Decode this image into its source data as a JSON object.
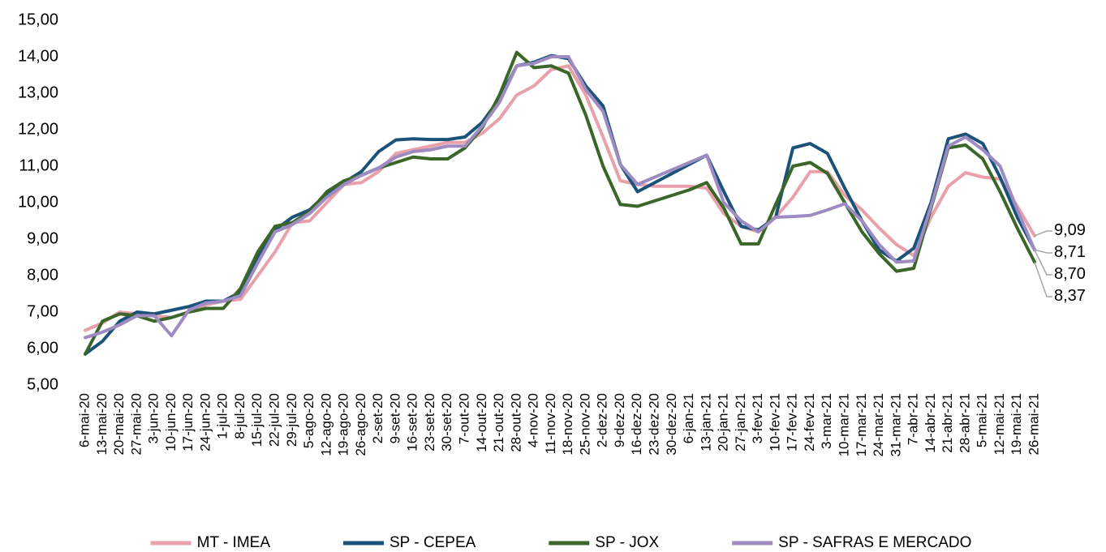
{
  "chart_data": {
    "type": "line",
    "categories": [
      "6-mai-20",
      "13-mai-20",
      "20-mai-20",
      "27-mai-20",
      "3-jun-20",
      "10-jun-20",
      "17-jun-20",
      "24-jun-20",
      "1-jul-20",
      "8-jul-20",
      "15-jul-20",
      "22-jul-20",
      "29-jul-20",
      "5-ago-20",
      "12-ago-20",
      "19-ago-20",
      "26-ago-20",
      "2-set-20",
      "9-set-20",
      "16-set-20",
      "23-set-20",
      "30-set-20",
      "7-out-20",
      "14-out-20",
      "21-out-20",
      "28-out-20",
      "4-nov-20",
      "11-nov-20",
      "18-nov-20",
      "25-nov-20",
      "2-dez-20",
      "9-dez-20",
      "16-dez-20",
      "23-dez-20",
      "30-dez-20",
      "6-jan-21",
      "13-jan-21",
      "20-jan-21",
      "27-jan-21",
      "3-fev-21",
      "10-fev-21",
      "17-fev-21",
      "24-fev-21",
      "3-mar-21",
      "10-mar-21",
      "17-mar-21",
      "24-mar-21",
      "31-mar-21",
      "7-abr-21",
      "14-abr-21",
      "21-abr-21",
      "28-abr-21",
      "5-mai-21",
      "12-mai-21",
      "19-mai-21",
      "26-mai-21"
    ],
    "series": [
      {
        "name": "MT - IMEA",
        "color": "#e8a1aa",
        "values": [
          6.5,
          6.7,
          7.0,
          6.95,
          6.9,
          6.85,
          7.0,
          7.2,
          7.3,
          7.35,
          8.0,
          8.65,
          9.45,
          9.5,
          10.0,
          10.5,
          10.55,
          10.85,
          11.35,
          11.45,
          11.55,
          11.65,
          11.65,
          11.9,
          12.3,
          12.95,
          13.2,
          13.65,
          13.75,
          12.95,
          11.8,
          10.6,
          10.5,
          10.45,
          10.45,
          10.45,
          10.4,
          9.7,
          9.35,
          9.2,
          9.6,
          10.15,
          10.85,
          10.85,
          10.2,
          9.8,
          9.3,
          8.85,
          8.55,
          9.6,
          10.45,
          10.82,
          10.7,
          10.65,
          9.9,
          9.09
        ],
        "value_labels": [
          null,
          null,
          null,
          null,
          null,
          null,
          null,
          null,
          null,
          null,
          null,
          null,
          null,
          null,
          null,
          null,
          null,
          null,
          null,
          null,
          null,
          null,
          null,
          null,
          null,
          null,
          null,
          null,
          null,
          null,
          null,
          null,
          null,
          null,
          null,
          null,
          null,
          null,
          null,
          null,
          null,
          null,
          null,
          null,
          null,
          null,
          null,
          null,
          null,
          null,
          null,
          null,
          null,
          null,
          null,
          "9,09"
        ]
      },
      {
        "name": "SP - CEPEA",
        "color": "#1b527a",
        "values": [
          5.85,
          6.2,
          6.75,
          7.0,
          6.95,
          7.05,
          7.15,
          7.3,
          7.3,
          7.55,
          8.5,
          9.25,
          9.6,
          9.8,
          10.25,
          10.55,
          10.85,
          11.4,
          11.72,
          11.75,
          11.73,
          11.73,
          11.8,
          12.2,
          12.85,
          13.75,
          13.85,
          14.03,
          13.95,
          13.2,
          12.65,
          11.05,
          10.3,
          10.55,
          10.8,
          11.05,
          11.3,
          10.3,
          9.35,
          9.25,
          9.6,
          11.5,
          11.62,
          11.35,
          10.4,
          9.5,
          8.7,
          8.4,
          8.75,
          10.0,
          11.75,
          11.88,
          11.62,
          10.7,
          9.6,
          8.71
        ],
        "value_labels": [
          null,
          null,
          null,
          null,
          null,
          null,
          null,
          null,
          null,
          null,
          null,
          null,
          null,
          null,
          null,
          null,
          null,
          null,
          null,
          null,
          null,
          null,
          null,
          null,
          null,
          null,
          null,
          null,
          null,
          null,
          null,
          null,
          null,
          null,
          null,
          null,
          null,
          null,
          null,
          null,
          null,
          null,
          null,
          null,
          null,
          null,
          null,
          null,
          null,
          null,
          null,
          null,
          null,
          null,
          null,
          "8,71"
        ]
      },
      {
        "name": "SP - JOX",
        "color": "#3b6629",
        "values": [
          5.85,
          6.75,
          6.95,
          6.9,
          6.75,
          6.85,
          7.0,
          7.1,
          7.1,
          7.65,
          8.65,
          9.35,
          9.45,
          9.75,
          10.3,
          10.6,
          10.75,
          10.95,
          11.1,
          11.25,
          11.2,
          11.2,
          11.5,
          12.05,
          12.95,
          14.12,
          13.7,
          13.75,
          13.55,
          12.4,
          11.0,
          9.95,
          9.9,
          10.05,
          10.2,
          10.35,
          10.55,
          9.85,
          8.87,
          8.87,
          9.95,
          11.0,
          11.1,
          10.8,
          10.0,
          9.2,
          8.6,
          8.12,
          8.2,
          9.85,
          11.5,
          11.58,
          11.2,
          10.3,
          9.3,
          8.37
        ],
        "value_labels": [
          null,
          null,
          null,
          null,
          null,
          null,
          null,
          null,
          null,
          null,
          null,
          null,
          null,
          null,
          null,
          null,
          null,
          null,
          null,
          null,
          null,
          null,
          null,
          null,
          null,
          null,
          null,
          null,
          null,
          null,
          null,
          null,
          null,
          null,
          null,
          null,
          null,
          null,
          null,
          null,
          null,
          null,
          null,
          null,
          null,
          null,
          null,
          null,
          null,
          null,
          null,
          null,
          null,
          null,
          null,
          "8,37"
        ]
      },
      {
        "name": "SP - SAFRAS E MERCADO",
        "color": "#9d8bc2",
        "values": [
          6.3,
          6.45,
          6.65,
          6.9,
          6.9,
          6.35,
          7.05,
          7.25,
          7.3,
          7.45,
          8.35,
          9.2,
          9.4,
          9.7,
          10.15,
          10.5,
          10.75,
          10.95,
          11.25,
          11.4,
          11.45,
          11.55,
          11.55,
          12.1,
          12.75,
          13.75,
          13.82,
          14.0,
          14.0,
          13.1,
          12.5,
          11.05,
          10.5,
          10.7,
          10.9,
          11.1,
          11.3,
          10.0,
          9.5,
          9.2,
          9.6,
          9.62,
          9.65,
          9.8,
          9.97,
          9.5,
          8.85,
          8.37,
          8.4,
          9.9,
          11.55,
          11.8,
          11.45,
          11.0,
          9.8,
          8.7
        ],
        "value_labels": [
          null,
          null,
          null,
          null,
          null,
          null,
          null,
          null,
          null,
          null,
          null,
          null,
          null,
          null,
          null,
          null,
          null,
          null,
          null,
          null,
          null,
          null,
          null,
          null,
          null,
          null,
          null,
          null,
          null,
          null,
          null,
          null,
          null,
          null,
          null,
          null,
          null,
          null,
          null,
          null,
          null,
          null,
          null,
          null,
          null,
          null,
          null,
          null,
          null,
          null,
          null,
          null,
          null,
          null,
          null,
          "8,70"
        ]
      }
    ],
    "ylim": [
      5,
      15
    ],
    "yticks": [
      {
        "value": 5,
        "label": "5,00"
      },
      {
        "value": 6,
        "label": "6,00"
      },
      {
        "value": 7,
        "label": "7,00"
      },
      {
        "value": 8,
        "label": "8,00"
      },
      {
        "value": 9,
        "label": "9,00"
      },
      {
        "value": 10,
        "label": "10,00"
      },
      {
        "value": 11,
        "label": "11,00"
      },
      {
        "value": 12,
        "label": "12,00"
      },
      {
        "value": 13,
        "label": "13,00"
      },
      {
        "value": 14,
        "label": "14,00"
      },
      {
        "value": 15,
        "label": "15,00"
      }
    ],
    "legend": "bottom"
  }
}
